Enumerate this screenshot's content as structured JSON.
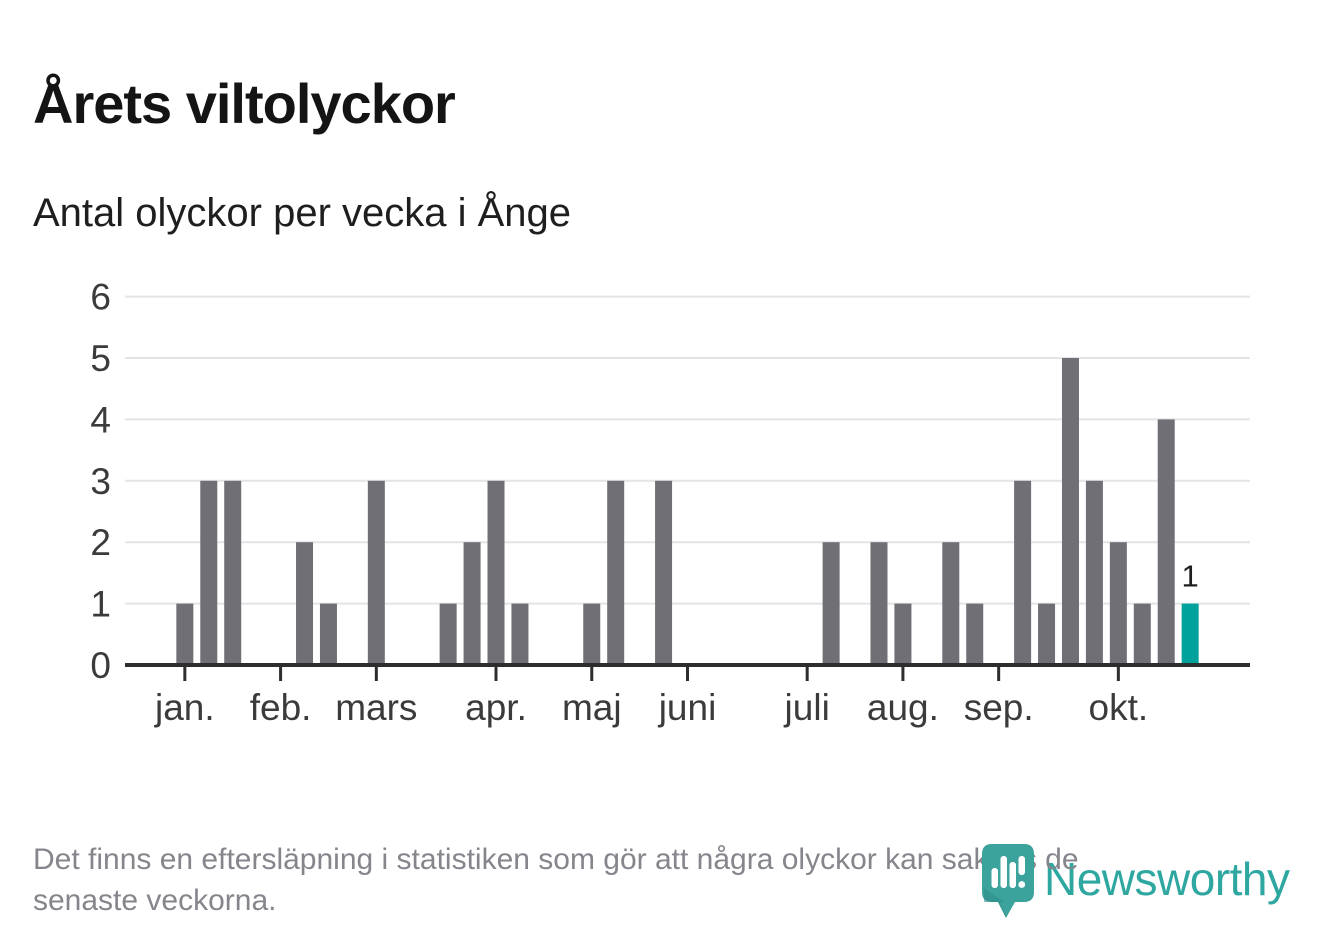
{
  "header": {
    "title": "Årets viltolyckor",
    "subtitle": "Antal olyckor per vecka i Ånge"
  },
  "chart_data": {
    "type": "bar",
    "title": "Årets viltolyckor",
    "subtitle": "Antal olyckor per vecka i Ånge",
    "x_unit": "vecka",
    "ylabel": "",
    "xlabel": "",
    "ylim": [
      0,
      6
    ],
    "yticks": [
      0,
      1,
      2,
      3,
      4,
      5,
      6
    ],
    "grid": "horizontal",
    "legend": "none",
    "values": [
      0,
      0,
      1,
      3,
      3,
      0,
      0,
      2,
      1,
      0,
      3,
      0,
      0,
      1,
      2,
      3,
      1,
      0,
      0,
      1,
      3,
      0,
      3,
      0,
      0,
      0,
      0,
      0,
      0,
      2,
      0,
      2,
      1,
      0,
      2,
      1,
      0,
      3,
      1,
      5,
      3,
      2,
      1,
      4,
      1,
      0,
      0
    ],
    "highlight_index": 44,
    "highlight_label": "1",
    "month_ticks": [
      {
        "label": "jan.",
        "slot": 2
      },
      {
        "label": "feb.",
        "slot": 6
      },
      {
        "label": "mars",
        "slot": 10
      },
      {
        "label": "apr.",
        "slot": 15
      },
      {
        "label": "maj",
        "slot": 19
      },
      {
        "label": "juni",
        "slot": 23
      },
      {
        "label": "juli",
        "slot": 28
      },
      {
        "label": "aug.",
        "slot": 32
      },
      {
        "label": "sep.",
        "slot": 36
      },
      {
        "label": "okt.",
        "slot": 41
      }
    ],
    "colors": {
      "bar": "#6f6f75",
      "highlight": "#00a29b",
      "axis": "#2d2d2d",
      "grid": "#e4e4e7",
      "tick_label": "#3b3b3b",
      "value_label": "#1f1f1f"
    }
  },
  "footer": {
    "note_lines": [
      "Det finns en eftersläpning i statistiken som gör att några olyckor kan saknas de",
      "senaste veckorna."
    ],
    "brand": {
      "name": "Newsworthy",
      "icon": "newsworthy-pin-barchart-icon",
      "wordmark_color": "#2fa7a1",
      "pin_color": "#3ba29c"
    }
  }
}
